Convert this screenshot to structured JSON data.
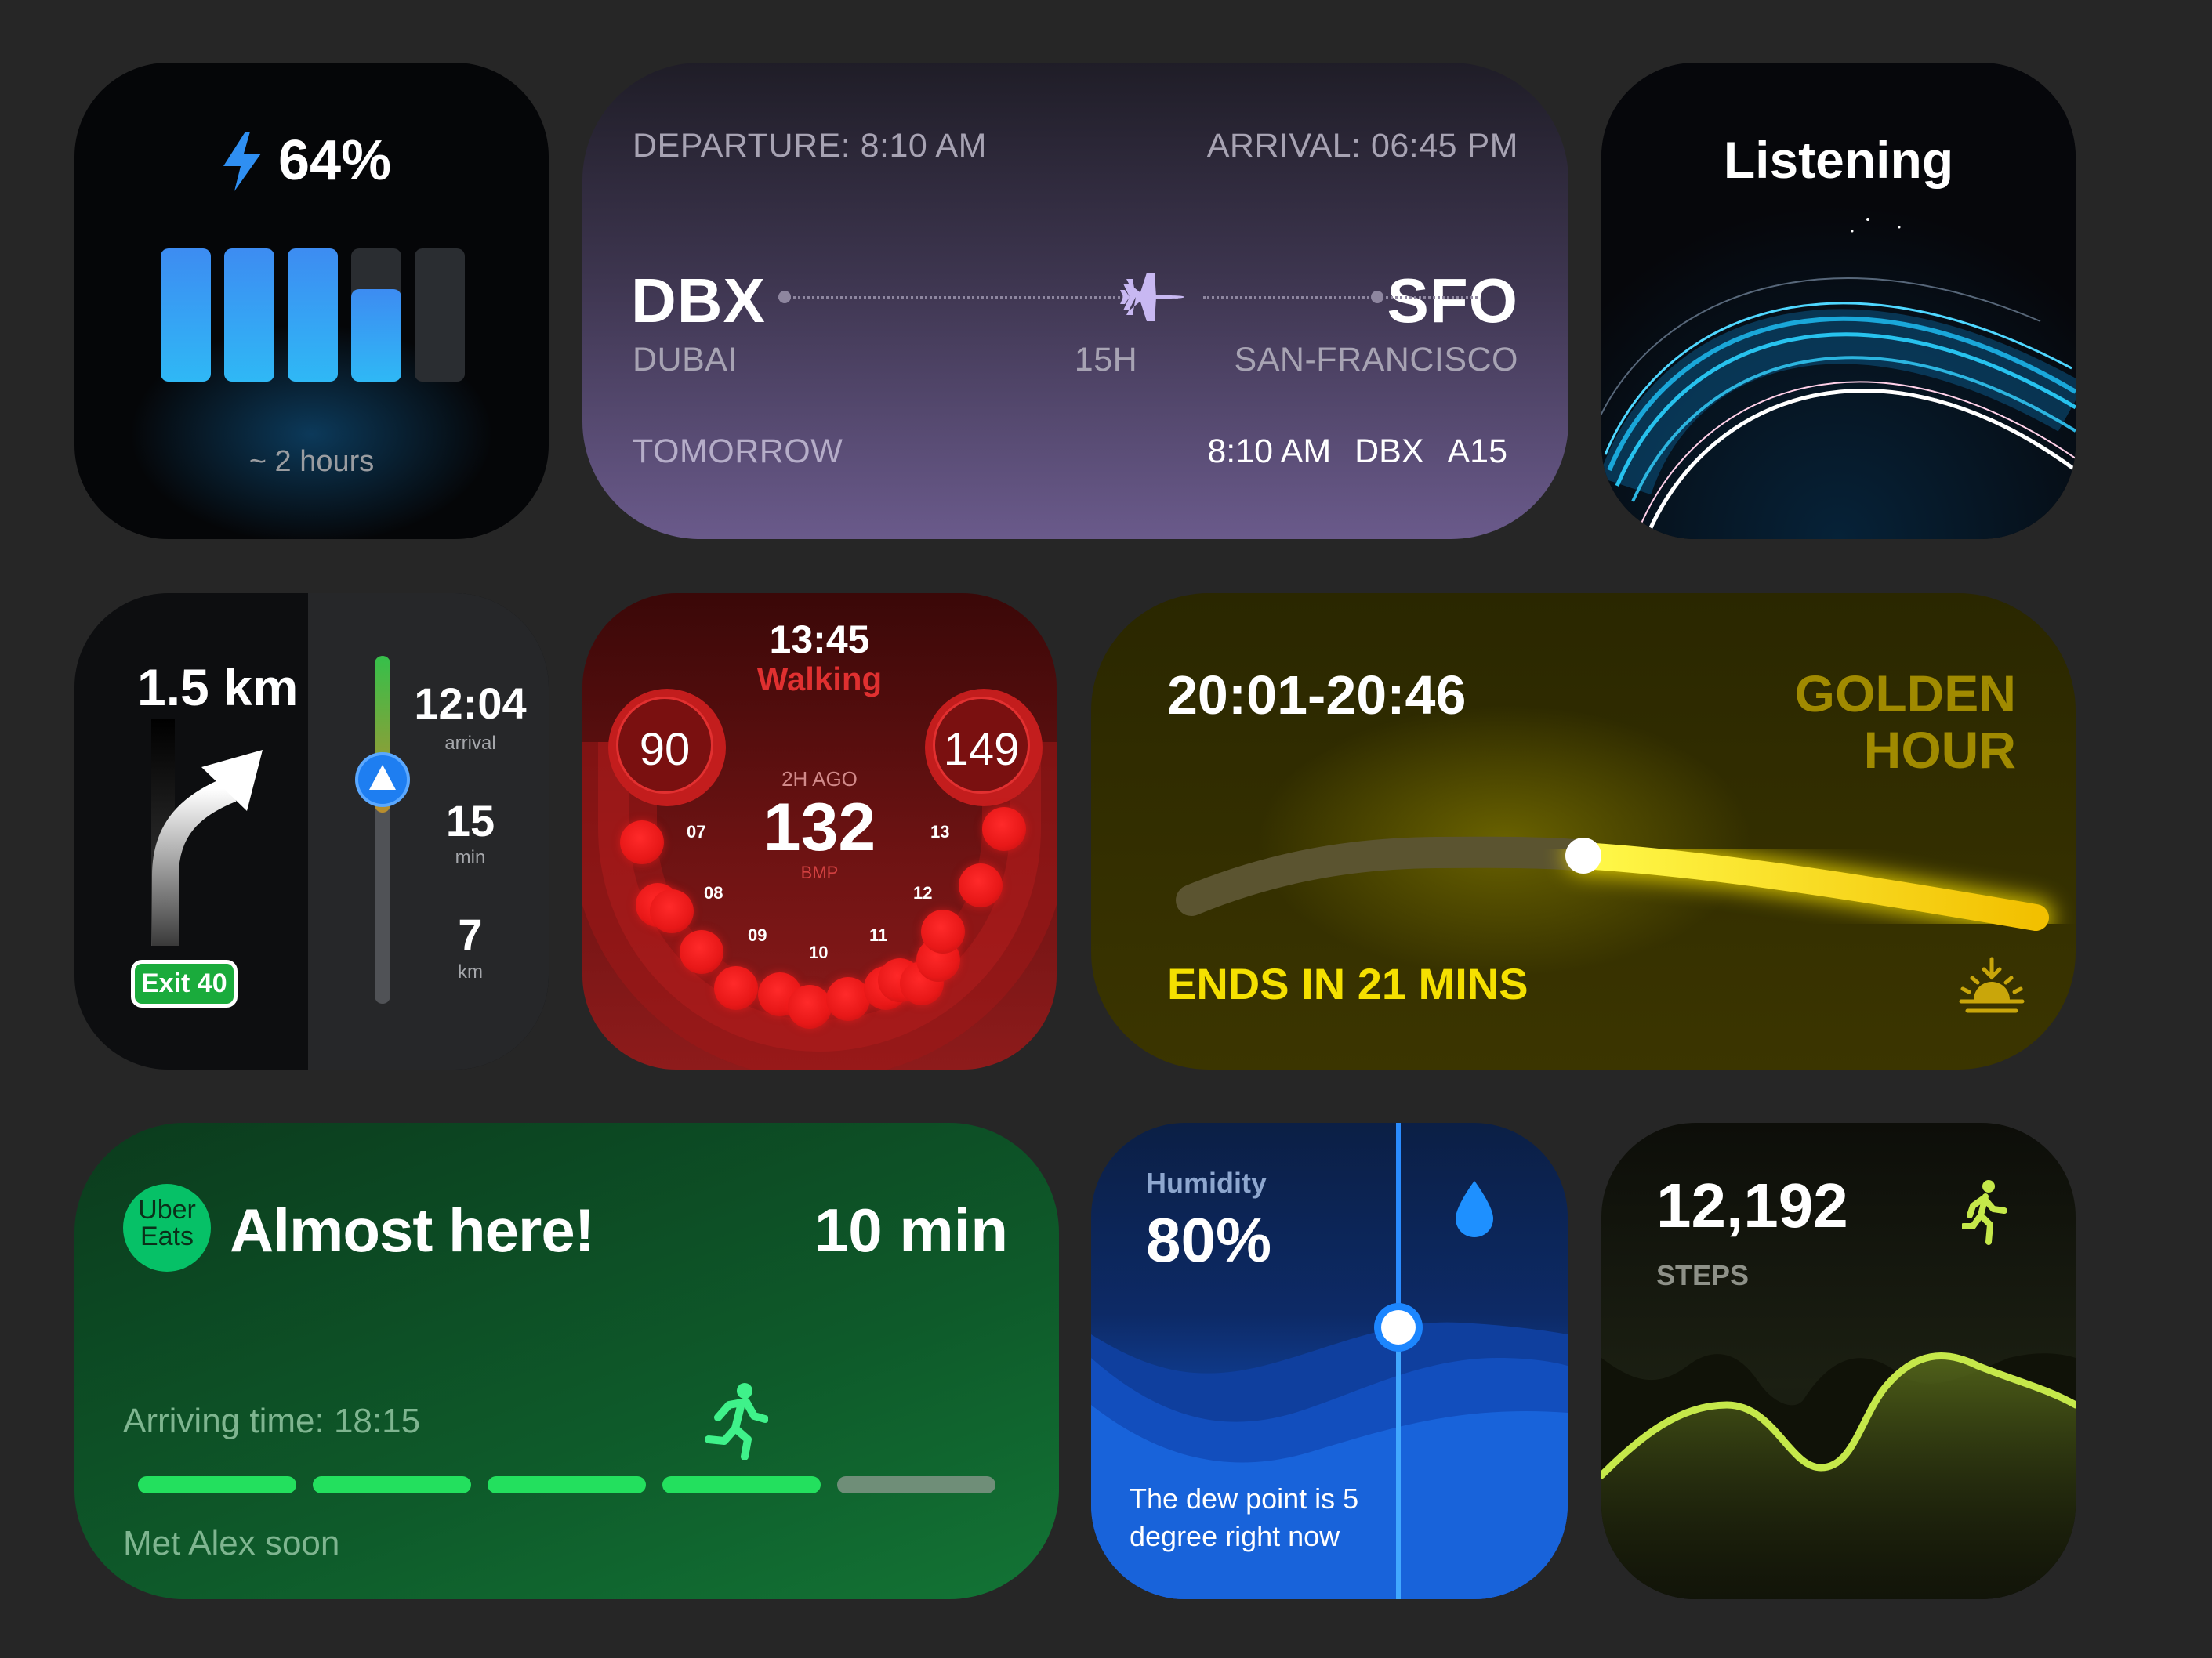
{
  "battery": {
    "percent": "64%",
    "estimate": "~ 2 hours",
    "bar_levels": [
      1,
      1,
      1,
      0.6,
      0
    ]
  },
  "flight": {
    "departure": "DEPARTURE: 8:10 AM",
    "arrival": "ARRIVAL: 06:45 PM",
    "origin_code": "DBX",
    "origin_city": "DUBAI",
    "dest_code": "SFO",
    "dest_city": "SAN-FRANCISCO",
    "duration": "15H",
    "day": "TOMORROW",
    "time": "8:10 AM",
    "terminal": "DBX",
    "gate": "A15"
  },
  "listening": {
    "title": "Listening"
  },
  "navigation": {
    "distance": "1.5 km",
    "exit": "Exit 40",
    "arrival_time": "12:04",
    "arrival_label": "arrival",
    "minutes": "15",
    "minutes_label": "min",
    "km": "7",
    "km_label": "km"
  },
  "heart": {
    "time": "13:45",
    "activity": "Walking",
    "min": "90",
    "max": "149",
    "ago": "2H AGO",
    "bpm": "132",
    "unit": "BMP",
    "hours": [
      "07",
      "08",
      "09",
      "10",
      "11",
      "12",
      "13"
    ]
  },
  "golden_hour": {
    "range": "20:01-20:46",
    "title_line1": "GOLDEN",
    "title_line2": "HOUR",
    "ends": "ENDS IN 21 MINS",
    "accent": "#f5e000"
  },
  "uber": {
    "logo_line1": "Uber",
    "logo_line2": "Eats",
    "title": "Almost here!",
    "eta": "10 min",
    "arriving": "Arriving time: 18:15",
    "note": "Met Alex soon",
    "progress_steps_done": 4,
    "progress_steps_total": 5,
    "accent": "#23e05e"
  },
  "humidity": {
    "label": "Humidity",
    "value": "80%",
    "desc_line1": "The dew point is 5",
    "desc_line2": "degree right now"
  },
  "steps": {
    "count": "12,192",
    "label": "STEPS",
    "accent": "#c5e84a"
  }
}
